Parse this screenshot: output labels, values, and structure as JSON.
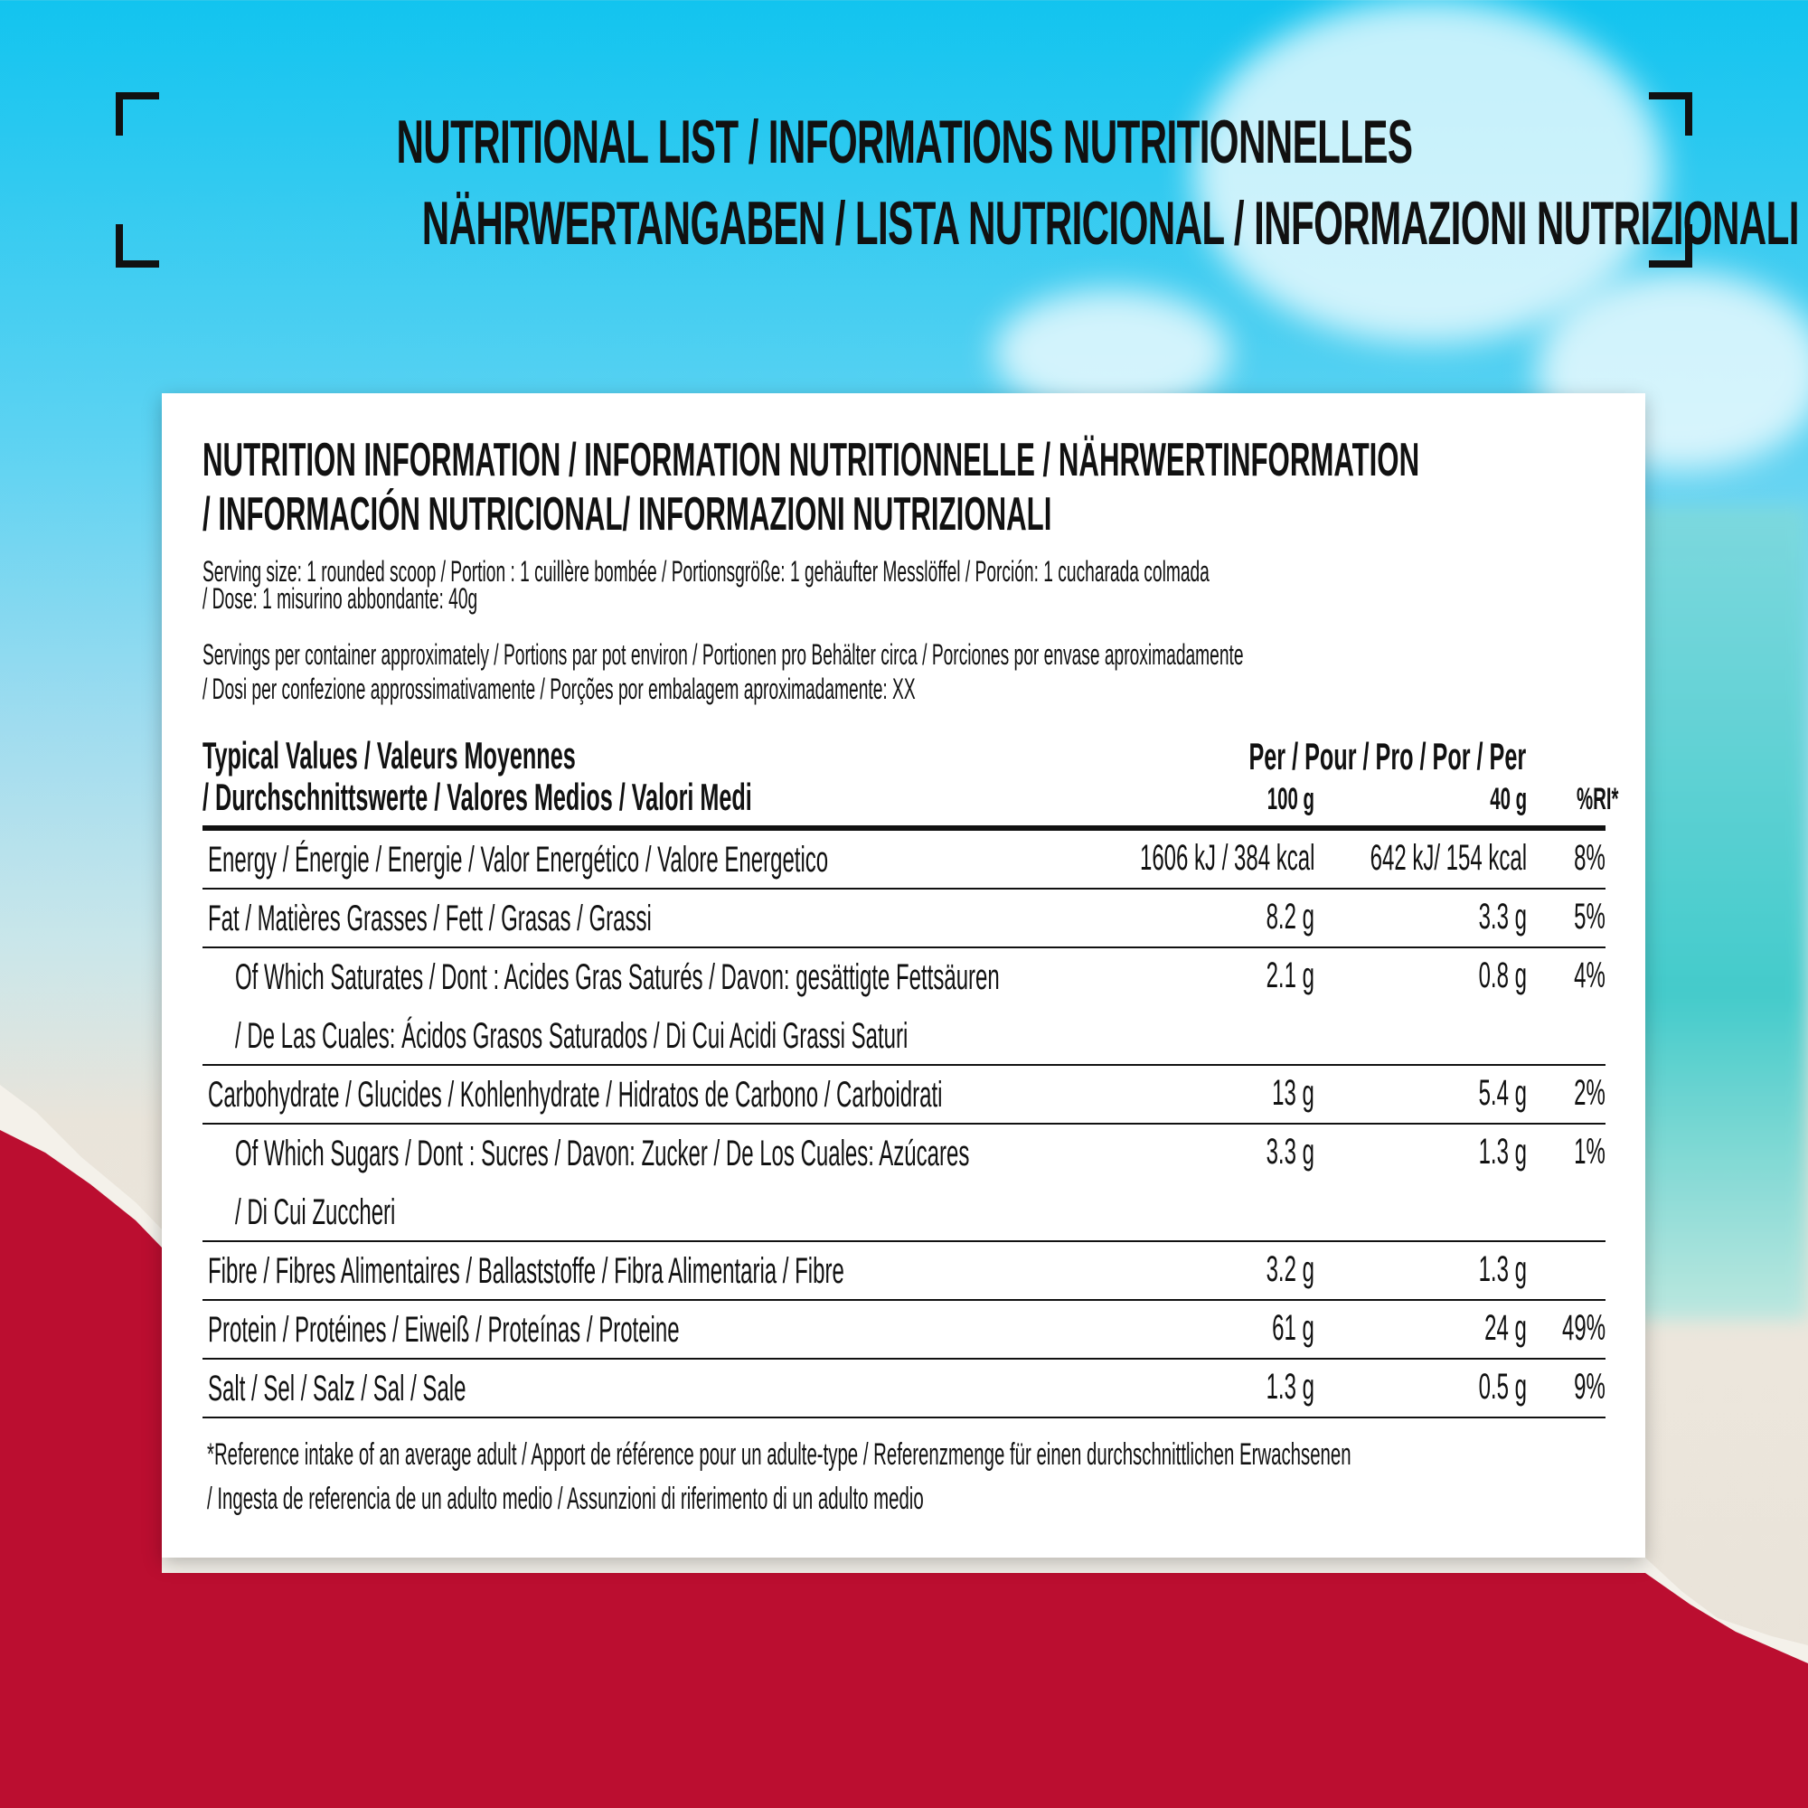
{
  "header": {
    "line1": "NUTRITIONAL LIST / INFORMATIONS NUTRITIONNELLES",
    "line2": "NÄHRWERTANGABEN / LISTA NUTRICIONAL / INFORMAZIONI NUTRIZIONALI"
  },
  "card": {
    "heading1": "NUTRITION INFORMATION / INFORMATION NUTRITIONNELLE / NÄHRWERTINFORMATION",
    "heading2": "/ INFORMACIÓN NUTRICIONAL/ INFORMAZIONI NUTRIZIONALI",
    "serving1": "Serving size: 1 rounded scoop / Portion : 1 cuillère bombée / Portionsgröße: 1 gehäufter Messlöffel / Porción: 1 cucharada  colmada",
    "serving2": "/ Dose: 1 misurino abbondante: 40g",
    "servings1": "Servings per container approximately / Portions par pot environ / Portionen pro Behälter circa / Porciones por envase aproximadamente",
    "servings2": "/ Dosi per confezione approssimativamente / Porções por embalagem aproximadamente: XX",
    "table_header": {
      "label1": "Typical Values / Valeurs Moyennes",
      "label2": "/ Durchschnittswerte / Valores Medios / Valori Medi",
      "per": "Per / Pour / Pro / Por / Per",
      "col1": "100 g",
      "col2": "40 g",
      "col3": "%RI*"
    },
    "rows": [
      {
        "label": "Energy / Énergie / Energie / Valor Energético / Valore Energetico",
        "per100": "1606 kJ / 384 kcal",
        "per40": "642 kJ/ 154 kcal",
        "ri": "8%"
      },
      {
        "label": "Fat / Matières Grasses / Fett / Grasas / Grassi",
        "per100": "8.2 g",
        "per40": "3.3 g",
        "ri": "5%"
      },
      {
        "label": "Of Which Saturates / Dont : Acides Gras Saturés / Davon: gesättigte Fettsäuren",
        "label2": "/ De Las Cuales: Ácidos Grasos Saturados / Di Cui Acidi Grassi Saturi",
        "per100": "2.1 g",
        "per40": "0.8 g",
        "ri": "4%"
      },
      {
        "label": "Carbohydrate / Glucides / Kohlenhydrate / Hidratos de Carbono / Carboidrati",
        "per100": "13 g",
        "per40": "5.4 g",
        "ri": "2%"
      },
      {
        "label": "Of Which Sugars / Dont : Sucres / Davon: Zucker / De Los Cuales: Azúcares",
        "label2": "/ Di Cui Zuccheri",
        "per100": "3.3 g",
        "per40": "1.3 g",
        "ri": "1%"
      },
      {
        "label": "Fibre / Fibres Alimentaires / Ballaststoffe / Fibra Alimentaria / Fibre",
        "per100": "3.2 g",
        "per40": "1.3 g",
        "ri": ""
      },
      {
        "label": "Protein / Protéines / Eiweiß / Proteínas / Proteine",
        "per100": "61 g",
        "per40": "24 g",
        "ri": "49%"
      },
      {
        "label": "Salt / Sel / Salz / Sal / Sale",
        "per100": "1.3 g",
        "per40": "0.5 g",
        "ri": "9%"
      }
    ],
    "footnote1": "*Reference intake of an average adult / Apport de référence pour un adulte-type / Referenzmenge für einen durchschnittlichen Erwachsenen",
    "footnote2": "/ Ingesta de referencia de un adulto medio / Assunzioni di riferimento di un adulto medio"
  },
  "colors": {
    "sky": "#12c4ef",
    "red": "#bb0e30",
    "card": "#ffffff",
    "text": "#111111"
  }
}
